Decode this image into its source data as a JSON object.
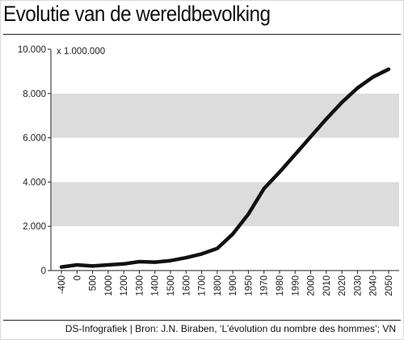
{
  "chart_data": {
    "type": "line",
    "title": "Evolutie van de wereldbevolking",
    "unit_label": "x 1.000.000",
    "xlabel": "",
    "ylabel": "",
    "categories": [
      "-400",
      "0",
      "500",
      "1000",
      "1200",
      "1300",
      "1400",
      "1500",
      "1600",
      "1700",
      "1800",
      "1900",
      "1950",
      "1970",
      "1980",
      "1990",
      "2000",
      "2010",
      "2020",
      "2030",
      "2040",
      "2050"
    ],
    "series": [
      {
        "values": [
          162,
          255,
          206,
          254,
          300,
          400,
          380,
          450,
          580,
          750,
          1000,
          1650,
          2550,
          3700,
          4450,
          5250,
          6050,
          6850,
          7600,
          8250,
          8750,
          9100
        ]
      }
    ],
    "ylim": [
      0,
      10000
    ],
    "yticks": [
      0,
      2000,
      4000,
      6000,
      8000,
      10000
    ],
    "ytick_labels": [
      "0",
      "2.000",
      "4.000",
      "6.000",
      "8.000",
      "10.000"
    ],
    "grid": "alternating horizontal bands",
    "colors": {
      "band_dark": "#dcdcdc",
      "band_light": "#ffffff",
      "line": "#111111"
    }
  },
  "footer": {
    "credit": "DS-Infografiek | Bron: J.N. Biraben, ‘L’évolution du nombre des hommes’; VN"
  }
}
